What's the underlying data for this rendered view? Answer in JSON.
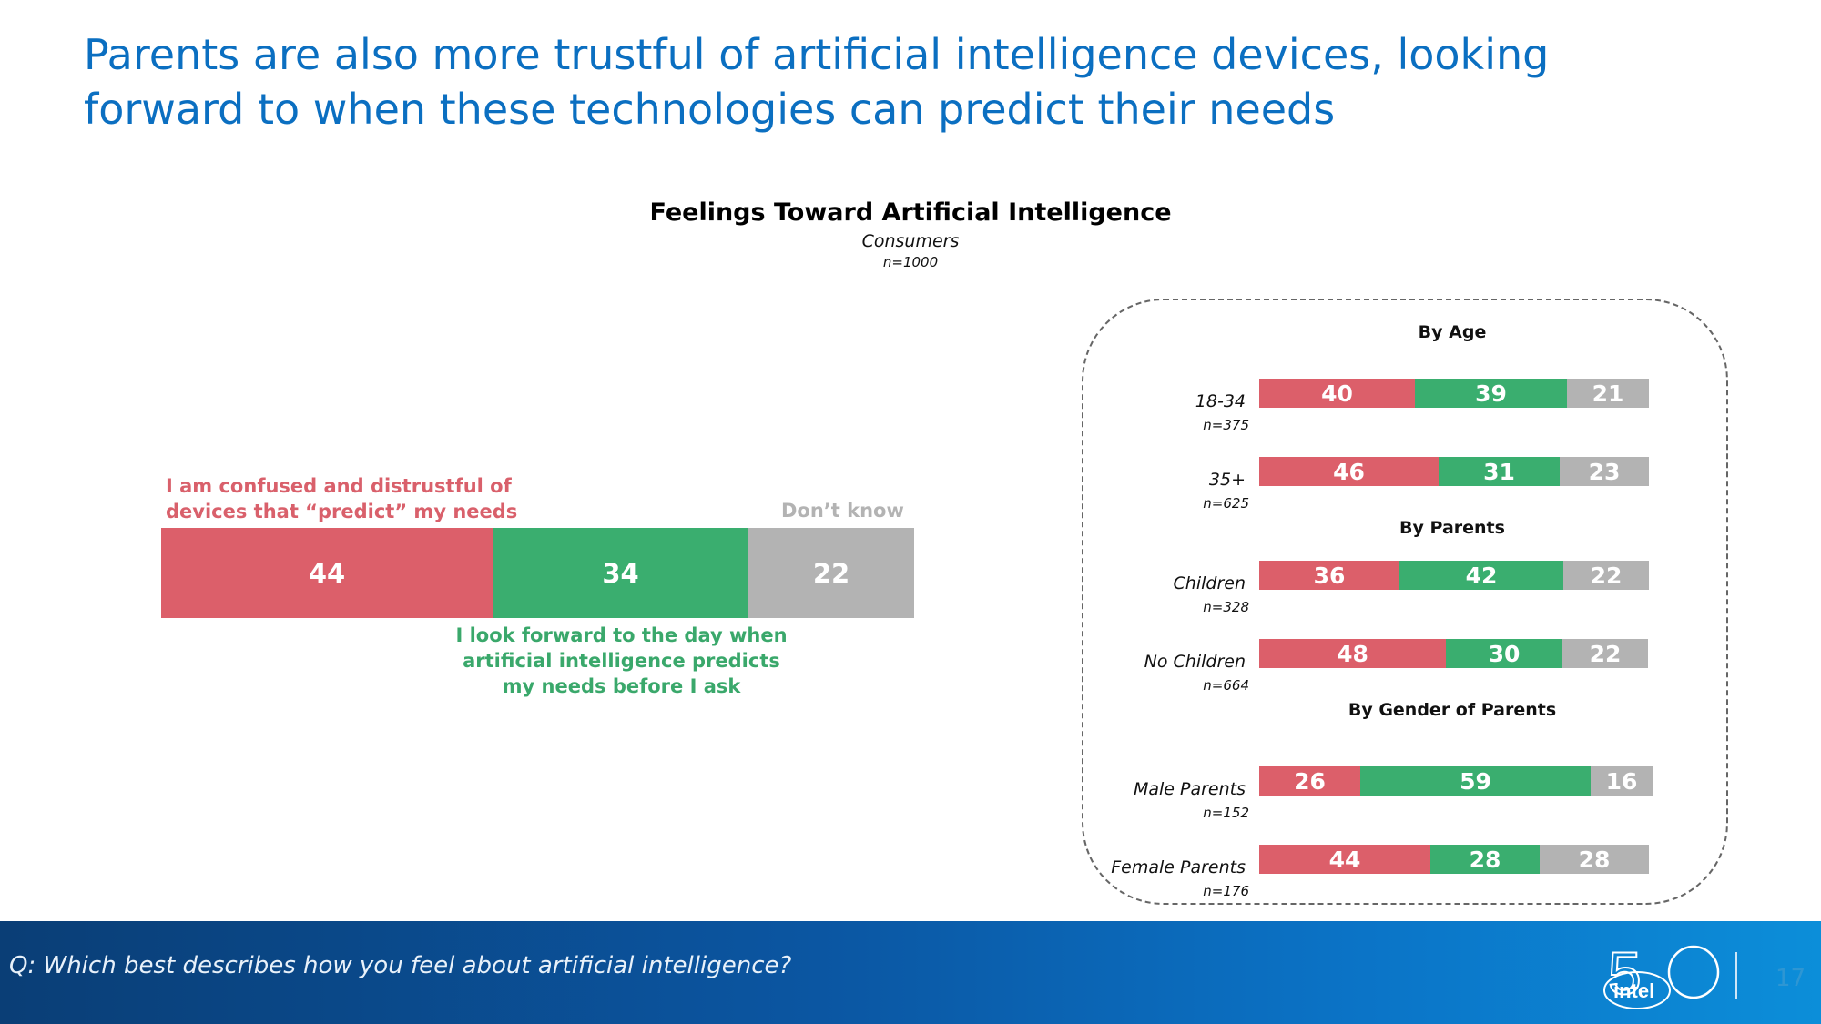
{
  "slide": {
    "title": "Parents are also more trustful of artificial intelligence devices, looking forward to when these technologies can predict their needs",
    "footnote": "Q: Which best describes how you feel about artificial intelligence?",
    "page_number": "17",
    "logo_text": "intel"
  },
  "colors": {
    "distrust": "#dc5f6a",
    "forward": "#3aae6f",
    "dont_know": "#b3b3b3",
    "title_blue": "#0b6fc1"
  },
  "chart_data": [
    {
      "type": "bar",
      "orientation": "horizontal-stacked",
      "title": "Feelings Toward Artificial Intelligence",
      "subtitle": "Consumers",
      "n_label": "n=1000",
      "categories": [
        "I am confused and distrustful of devices that “predict” my needs",
        "I look forward to the day when artificial intelligence predicts my needs before I ask",
        "Don’t know"
      ],
      "values": [
        44,
        34,
        22
      ],
      "labels": {
        "distrust_line1": "I am confused and distrustful of",
        "distrust_line2": "devices that “predict” my needs",
        "forward_line1": "I look forward to the day when",
        "forward_line2": "artificial intelligence predicts",
        "forward_line3": "my needs before I ask",
        "dont_know": "Don’t know"
      }
    },
    {
      "type": "bar",
      "orientation": "horizontal-stacked",
      "series_names": [
        "Confused and distrustful",
        "Look forward",
        "Don't know"
      ],
      "groups": [
        {
          "header": "By Age",
          "rows": [
            {
              "label": "18-34",
              "n": "n=375",
              "values": [
                40,
                39,
                21
              ]
            },
            {
              "label": "35+",
              "n": "n=625",
              "values": [
                46,
                31,
                23
              ]
            }
          ]
        },
        {
          "header": "By Parents",
          "rows": [
            {
              "label": "Children",
              "n": "n=328",
              "values": [
                36,
                42,
                22
              ]
            },
            {
              "label": "No Children",
              "n": "n=664",
              "values": [
                48,
                30,
                22
              ]
            }
          ]
        },
        {
          "header": "By Gender of Parents",
          "rows": [
            {
              "label": "Male Parents",
              "n": "n=152",
              "values": [
                26,
                59,
                16
              ]
            },
            {
              "label": "Female Parents",
              "n": "n=176",
              "values": [
                44,
                28,
                28
              ]
            }
          ]
        }
      ]
    }
  ]
}
